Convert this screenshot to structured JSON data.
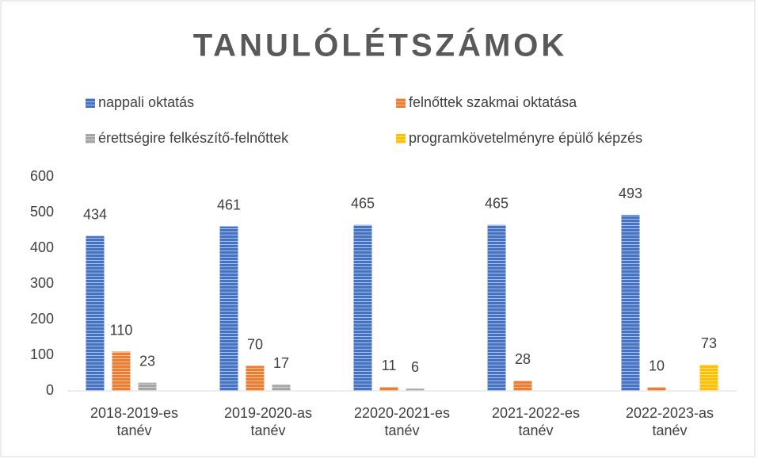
{
  "chart_data": {
    "type": "bar",
    "title": "TANULÓLÉTSZÁMOK",
    "categories": [
      "2018-2019-es tanév",
      "2019-2020-as tanév",
      "22020-2021-es tanév",
      "2021-2022-es tanév",
      "2022-2023-as tanév"
    ],
    "series": [
      {
        "name": "nappali oktatás",
        "color": "#4472c4",
        "values": [
          434,
          461,
          465,
          465,
          493
        ]
      },
      {
        "name": "felnőttek szakmai oktatása",
        "color": "#ed7d31",
        "values": [
          110,
          70,
          11,
          28,
          10
        ]
      },
      {
        "name": "érettségire felkészítő-felnőttek",
        "color": "#a5a5a5",
        "values": [
          23,
          17,
          6,
          null,
          null
        ]
      },
      {
        "name": "programkövetelményre épülő képzés",
        "color": "#ffc000",
        "values": [
          null,
          null,
          null,
          null,
          73
        ]
      }
    ],
    "ylim": [
      0,
      600
    ],
    "yticks": [
      0,
      100,
      200,
      300,
      400,
      500,
      600
    ],
    "grid": false,
    "legend": "top"
  }
}
